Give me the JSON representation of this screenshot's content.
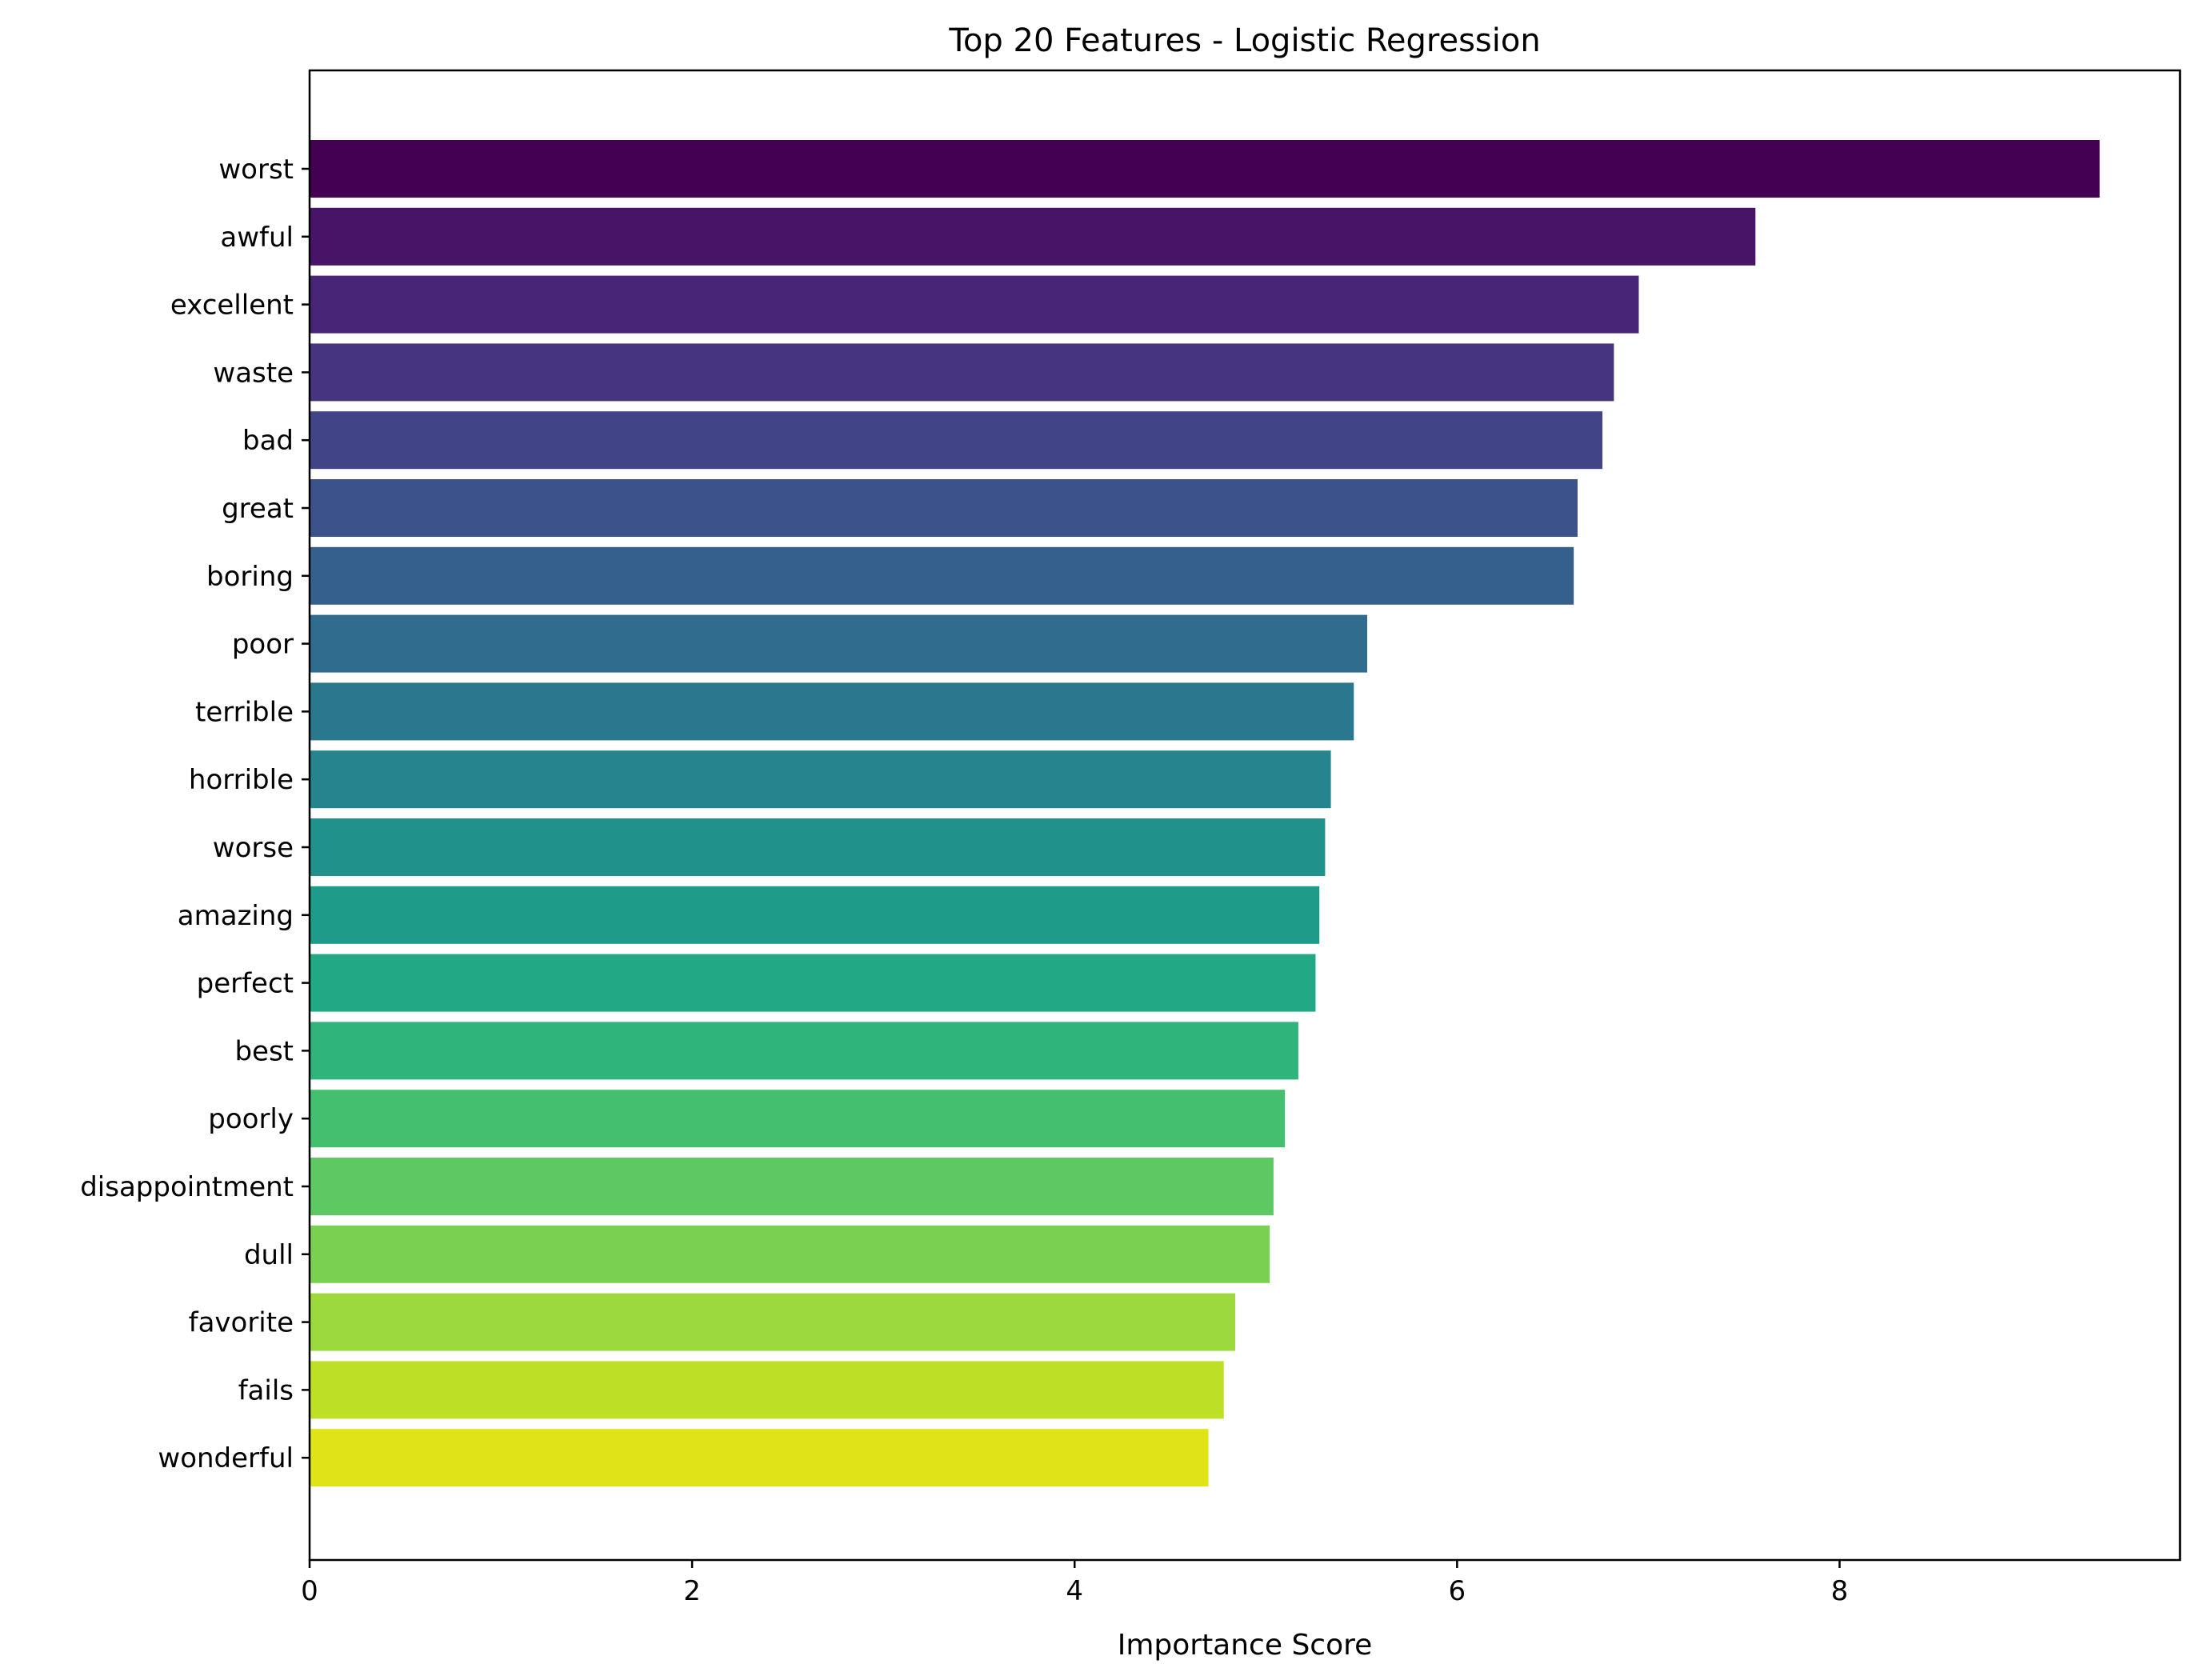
{
  "chart_data": {
    "type": "bar",
    "orientation": "horizontal",
    "title": "Top 20 Features - Logistic Regression",
    "xlabel": "Importance Score",
    "ylabel": "",
    "xlim": [
      0,
      9.78
    ],
    "xticks": [
      0,
      2,
      4,
      6,
      8
    ],
    "xtick_labels": [
      "0",
      "2",
      "4",
      "6",
      "8"
    ],
    "grid": false,
    "legend": "none",
    "colormap": "viridis",
    "categories": [
      "worst",
      "awful",
      "excellent",
      "waste",
      "bad",
      "great",
      "boring",
      "poor",
      "terrible",
      "horrible",
      "worse",
      "amazing",
      "perfect",
      "best",
      "poorly",
      "disappointment",
      "dull",
      "favorite",
      "fails",
      "wonderful"
    ],
    "values": [
      9.36,
      7.56,
      6.95,
      6.82,
      6.76,
      6.63,
      6.61,
      5.53,
      5.46,
      5.34,
      5.31,
      5.28,
      5.26,
      5.17,
      5.1,
      5.04,
      5.02,
      4.84,
      4.78,
      4.7
    ],
    "colors": [
      "#440154",
      "#481467",
      "#482576",
      "#463480",
      "#414487",
      "#3b528b",
      "#355f8d",
      "#2f6c8e",
      "#2a788e",
      "#25848e",
      "#21918c",
      "#1e9c89",
      "#22a884",
      "#2fb47c",
      "#44bf70",
      "#5ec962",
      "#7ad151",
      "#9bd93c",
      "#bddf26",
      "#dfe318"
    ]
  }
}
